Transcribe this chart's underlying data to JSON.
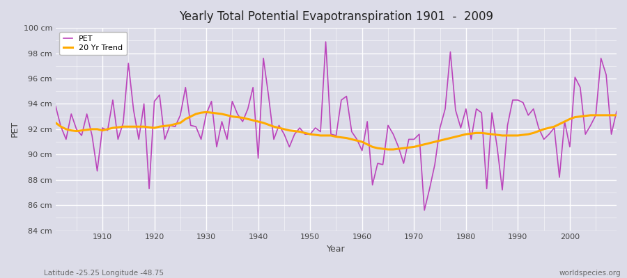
{
  "title": "Yearly Total Potential Evapotranspiration 1901  -  2009",
  "xlabel": "Year",
  "ylabel": "PET",
  "subtitle_left": "Latitude -25.25 Longitude -48.75",
  "subtitle_right": "worldspecies.org",
  "pet_color": "#bb44bb",
  "trend_color": "#ffaa00",
  "bg_color": "#dcdce8",
  "plot_bg": "#dcdce8",
  "ylim": [
    84,
    100
  ],
  "xlim": [
    1901,
    2009
  ],
  "ytick_labels": [
    "84 cm",
    "86 cm",
    "88 cm",
    "90 cm",
    "92 cm",
    "94 cm",
    "96 cm",
    "98 cm",
    "100 cm"
  ],
  "ytick_values": [
    84,
    86,
    88,
    90,
    92,
    94,
    96,
    98,
    100
  ],
  "xtick_values": [
    1910,
    1920,
    1930,
    1940,
    1950,
    1960,
    1970,
    1980,
    1990,
    2000
  ],
  "years": [
    1901,
    1902,
    1903,
    1904,
    1905,
    1906,
    1907,
    1908,
    1909,
    1910,
    1911,
    1912,
    1913,
    1914,
    1915,
    1916,
    1917,
    1918,
    1919,
    1920,
    1921,
    1922,
    1923,
    1924,
    1925,
    1926,
    1927,
    1928,
    1929,
    1930,
    1931,
    1932,
    1933,
    1934,
    1935,
    1936,
    1937,
    1938,
    1939,
    1940,
    1941,
    1942,
    1943,
    1944,
    1945,
    1946,
    1947,
    1948,
    1949,
    1950,
    1951,
    1952,
    1953,
    1954,
    1955,
    1956,
    1957,
    1958,
    1959,
    1960,
    1961,
    1962,
    1963,
    1964,
    1965,
    1966,
    1967,
    1968,
    1969,
    1970,
    1971,
    1972,
    1973,
    1974,
    1975,
    1976,
    1977,
    1978,
    1979,
    1980,
    1981,
    1982,
    1983,
    1984,
    1985,
    1986,
    1987,
    1988,
    1989,
    1990,
    1991,
    1992,
    1993,
    1994,
    1995,
    1996,
    1997,
    1998,
    1999,
    2000,
    2001,
    2002,
    2003,
    2004,
    2005,
    2006,
    2007,
    2008,
    2009
  ],
  "pet": [
    93.8,
    92.2,
    91.2,
    93.2,
    92.0,
    91.5,
    93.2,
    91.5,
    88.7,
    92.1,
    91.9,
    94.3,
    91.2,
    92.5,
    97.2,
    93.5,
    91.2,
    94.0,
    87.3,
    94.2,
    94.7,
    91.2,
    92.3,
    92.2,
    93.1,
    95.3,
    92.3,
    92.2,
    91.2,
    93.2,
    94.2,
    90.6,
    92.6,
    91.2,
    94.2,
    93.2,
    92.6,
    93.6,
    95.3,
    89.7,
    97.6,
    94.6,
    91.2,
    92.3,
    91.6,
    90.6,
    91.6,
    92.1,
    91.6,
    91.6,
    92.1,
    91.8,
    98.9,
    91.6,
    91.5,
    94.3,
    94.6,
    91.8,
    91.2,
    90.3,
    92.6,
    87.6,
    89.3,
    89.2,
    92.3,
    91.6,
    90.6,
    89.3,
    91.2,
    91.2,
    91.6,
    85.6,
    87.3,
    89.2,
    92.1,
    93.6,
    98.1,
    93.5,
    92.1,
    93.6,
    91.2,
    93.6,
    93.3,
    87.3,
    93.3,
    90.6,
    87.2,
    92.3,
    94.3,
    94.3,
    94.1,
    93.1,
    93.6,
    92.1,
    91.2,
    91.6,
    92.1,
    88.2,
    92.6,
    90.6,
    96.1,
    95.3,
    91.6,
    92.3,
    93.1,
    97.6,
    96.3,
    91.6,
    93.4
  ],
  "trend": [
    92.5,
    92.2,
    92.0,
    91.9,
    91.85,
    91.9,
    91.95,
    92.0,
    92.0,
    91.9,
    92.0,
    92.1,
    92.15,
    92.2,
    92.2,
    92.2,
    92.2,
    92.2,
    92.15,
    92.1,
    92.2,
    92.25,
    92.3,
    92.4,
    92.5,
    92.8,
    93.0,
    93.2,
    93.3,
    93.35,
    93.3,
    93.25,
    93.2,
    93.1,
    93.0,
    92.95,
    92.9,
    92.8,
    92.7,
    92.6,
    92.5,
    92.35,
    92.2,
    92.1,
    92.0,
    91.9,
    91.85,
    91.8,
    91.7,
    91.6,
    91.55,
    91.5,
    91.5,
    91.5,
    91.4,
    91.35,
    91.3,
    91.2,
    91.1,
    91.0,
    90.8,
    90.6,
    90.5,
    90.45,
    90.4,
    90.4,
    90.45,
    90.5,
    90.55,
    90.6,
    90.7,
    90.8,
    90.9,
    91.0,
    91.1,
    91.2,
    91.3,
    91.4,
    91.5,
    91.6,
    91.65,
    91.7,
    91.7,
    91.65,
    91.6,
    91.55,
    91.5,
    91.5,
    91.5,
    91.5,
    91.55,
    91.6,
    91.7,
    91.85,
    92.0,
    92.1,
    92.2,
    92.4,
    92.6,
    92.8,
    92.95,
    93.0,
    93.05,
    93.1,
    93.1,
    93.1,
    93.1,
    93.1,
    93.1
  ]
}
